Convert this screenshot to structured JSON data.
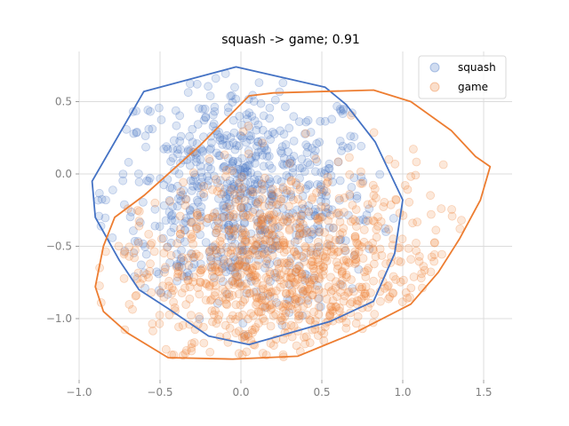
{
  "chart_data": {
    "type": "scatter",
    "title": "squash -> game; 0.91",
    "xlabel": "",
    "ylabel": "",
    "xlim": [
      -1.0,
      1.6
    ],
    "ylim": [
      -1.4,
      0.85
    ],
    "xticks": [
      -1.0,
      -0.5,
      0.0,
      0.5,
      1.0,
      1.5
    ],
    "xtick_labels": [
      "−1.0",
      "−0.5",
      "0.0",
      "0.5",
      "1.0",
      "1.5"
    ],
    "yticks": [
      -1.0,
      -0.5,
      0.0,
      0.5
    ],
    "ytick_labels": [
      "−1.0",
      "−0.5",
      "0.0",
      "0.5"
    ],
    "grid": true,
    "legend_position": "top-right",
    "series": [
      {
        "name": "squash",
        "color": "#4472c4",
        "hull": [
          [
            -0.92,
            -0.05
          ],
          [
            -0.6,
            0.57
          ],
          [
            -0.03,
            0.74
          ],
          [
            0.52,
            0.6
          ],
          [
            0.65,
            0.48
          ],
          [
            0.83,
            0.22
          ],
          [
            1.0,
            -0.18
          ],
          [
            0.95,
            -0.55
          ],
          [
            0.82,
            -0.88
          ],
          [
            0.55,
            -1.02
          ],
          [
            0.3,
            -1.1
          ],
          [
            0.05,
            -1.18
          ],
          [
            -0.2,
            -1.12
          ],
          [
            -0.45,
            -0.93
          ],
          [
            -0.63,
            -0.8
          ],
          [
            -0.75,
            -0.6
          ],
          [
            -0.9,
            -0.3
          ]
        ],
        "center": [
          0.0,
          -0.15
        ],
        "spread": [
          0.42,
          0.4
        ]
      },
      {
        "name": "game",
        "color": "#ed7d31",
        "hull": [
          [
            -0.78,
            -0.3
          ],
          [
            -0.6,
            -0.15
          ],
          [
            -0.25,
            0.2
          ],
          [
            0.05,
            0.54
          ],
          [
            0.2,
            0.56
          ],
          [
            0.82,
            0.58
          ],
          [
            1.05,
            0.5
          ],
          [
            1.3,
            0.3
          ],
          [
            1.45,
            0.12
          ],
          [
            1.54,
            0.05
          ],
          [
            1.48,
            -0.18
          ],
          [
            1.35,
            -0.45
          ],
          [
            1.22,
            -0.68
          ],
          [
            1.05,
            -0.9
          ],
          [
            0.7,
            -1.1
          ],
          [
            0.35,
            -1.26
          ],
          [
            -0.05,
            -1.28
          ],
          [
            -0.45,
            -1.27
          ],
          [
            -0.7,
            -1.1
          ],
          [
            -0.85,
            -0.95
          ],
          [
            -0.9,
            -0.78
          ],
          [
            -0.85,
            -0.5
          ]
        ],
        "center": [
          0.25,
          -0.7
        ],
        "spread": [
          0.5,
          0.38
        ]
      }
    ]
  }
}
